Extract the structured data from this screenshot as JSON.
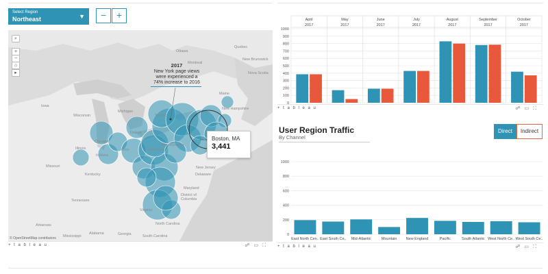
{
  "region_select": {
    "label": "Select Region",
    "value": "Northeast"
  },
  "zoom": {
    "minus": "−",
    "plus": "+"
  },
  "map": {
    "controls": [
      "⌕",
      "+",
      "−",
      "⌂",
      "▸"
    ],
    "annotation": {
      "year": "2017",
      "text_lines": [
        "New York page views",
        "were experienced a",
        "74% increase to 2016"
      ]
    },
    "tooltip": {
      "city": "Boston, MA",
      "value": "3,441"
    },
    "attribution": "© OpenStreetMap contributors",
    "places": [
      "Ottawa",
      "Montreal",
      "Quebec",
      "Maine",
      "New Hampshire",
      "New Jersey",
      "Delaware",
      "Maryland",
      "District of Columbia",
      "Virginia",
      "Tennessee",
      "Kentucky",
      "Ohio",
      "Indiana",
      "Illinois",
      "Wisconsin",
      "Iowa",
      "Missouri",
      "Detroit",
      "Chicago",
      "Toronto",
      "Michigan",
      "North Carolina",
      "Georgia",
      "Alabama",
      "South Carolina",
      "Pennsylvania",
      "Arkansas",
      "Mississippi",
      "Nova Scotia",
      "New Brunswick",
      "Cleveland"
    ],
    "circle_color": "#2f93b5"
  },
  "footer": {
    "brand": "+ t a b l e a u",
    "icons": [
      "share-icon",
      "download-icon",
      "fullscreen-icon"
    ]
  },
  "colors": {
    "direct": "#2f93b5",
    "indirect": "#e8583a"
  },
  "monthly_chart": {
    "chart_data": {
      "type": "bar",
      "categories": [
        {
          "month": "April",
          "year": "2017"
        },
        {
          "month": "May",
          "year": "2017"
        },
        {
          "month": "June",
          "year": "2017"
        },
        {
          "month": "July",
          "year": "2017"
        },
        {
          "month": "August",
          "year": "2017"
        },
        {
          "month": "September",
          "year": "2017"
        },
        {
          "month": "October",
          "year": "2017"
        }
      ],
      "series": [
        {
          "name": "Direct",
          "values": [
            385,
            170,
            190,
            430,
            830,
            780,
            420
          ]
        },
        {
          "name": "Indirect",
          "values": [
            385,
            50,
            190,
            430,
            800,
            785,
            370
          ]
        }
      ],
      "ylim": [
        0,
        1000
      ],
      "yticks": [
        "0",
        "100",
        "200",
        "300",
        "400",
        "500",
        "600",
        "700",
        "800",
        "900",
        "1000"
      ],
      "grid": true
    }
  },
  "traffic": {
    "title": "User Region Traffic",
    "subtitle": "By Channel",
    "toggle": {
      "direct": "Direct",
      "indirect": "Indirect",
      "selected": "Direct"
    },
    "chart_data": {
      "type": "bar",
      "categories": [
        "East North Cen..",
        "East South Ce..",
        "Mid-Atlantic",
        "Mountain",
        "New England",
        "Pacific",
        "South Atlantic",
        "West North Ce..",
        "West South Ce.."
      ],
      "series": [
        {
          "values": [
            195,
            175,
            205,
            100,
            225,
            185,
            170,
            180,
            165
          ]
        }
      ],
      "ylim": [
        0,
        1000
      ],
      "yticks": [
        "0",
        "200",
        "400",
        "600",
        "800",
        "1000"
      ],
      "grid": true
    }
  }
}
